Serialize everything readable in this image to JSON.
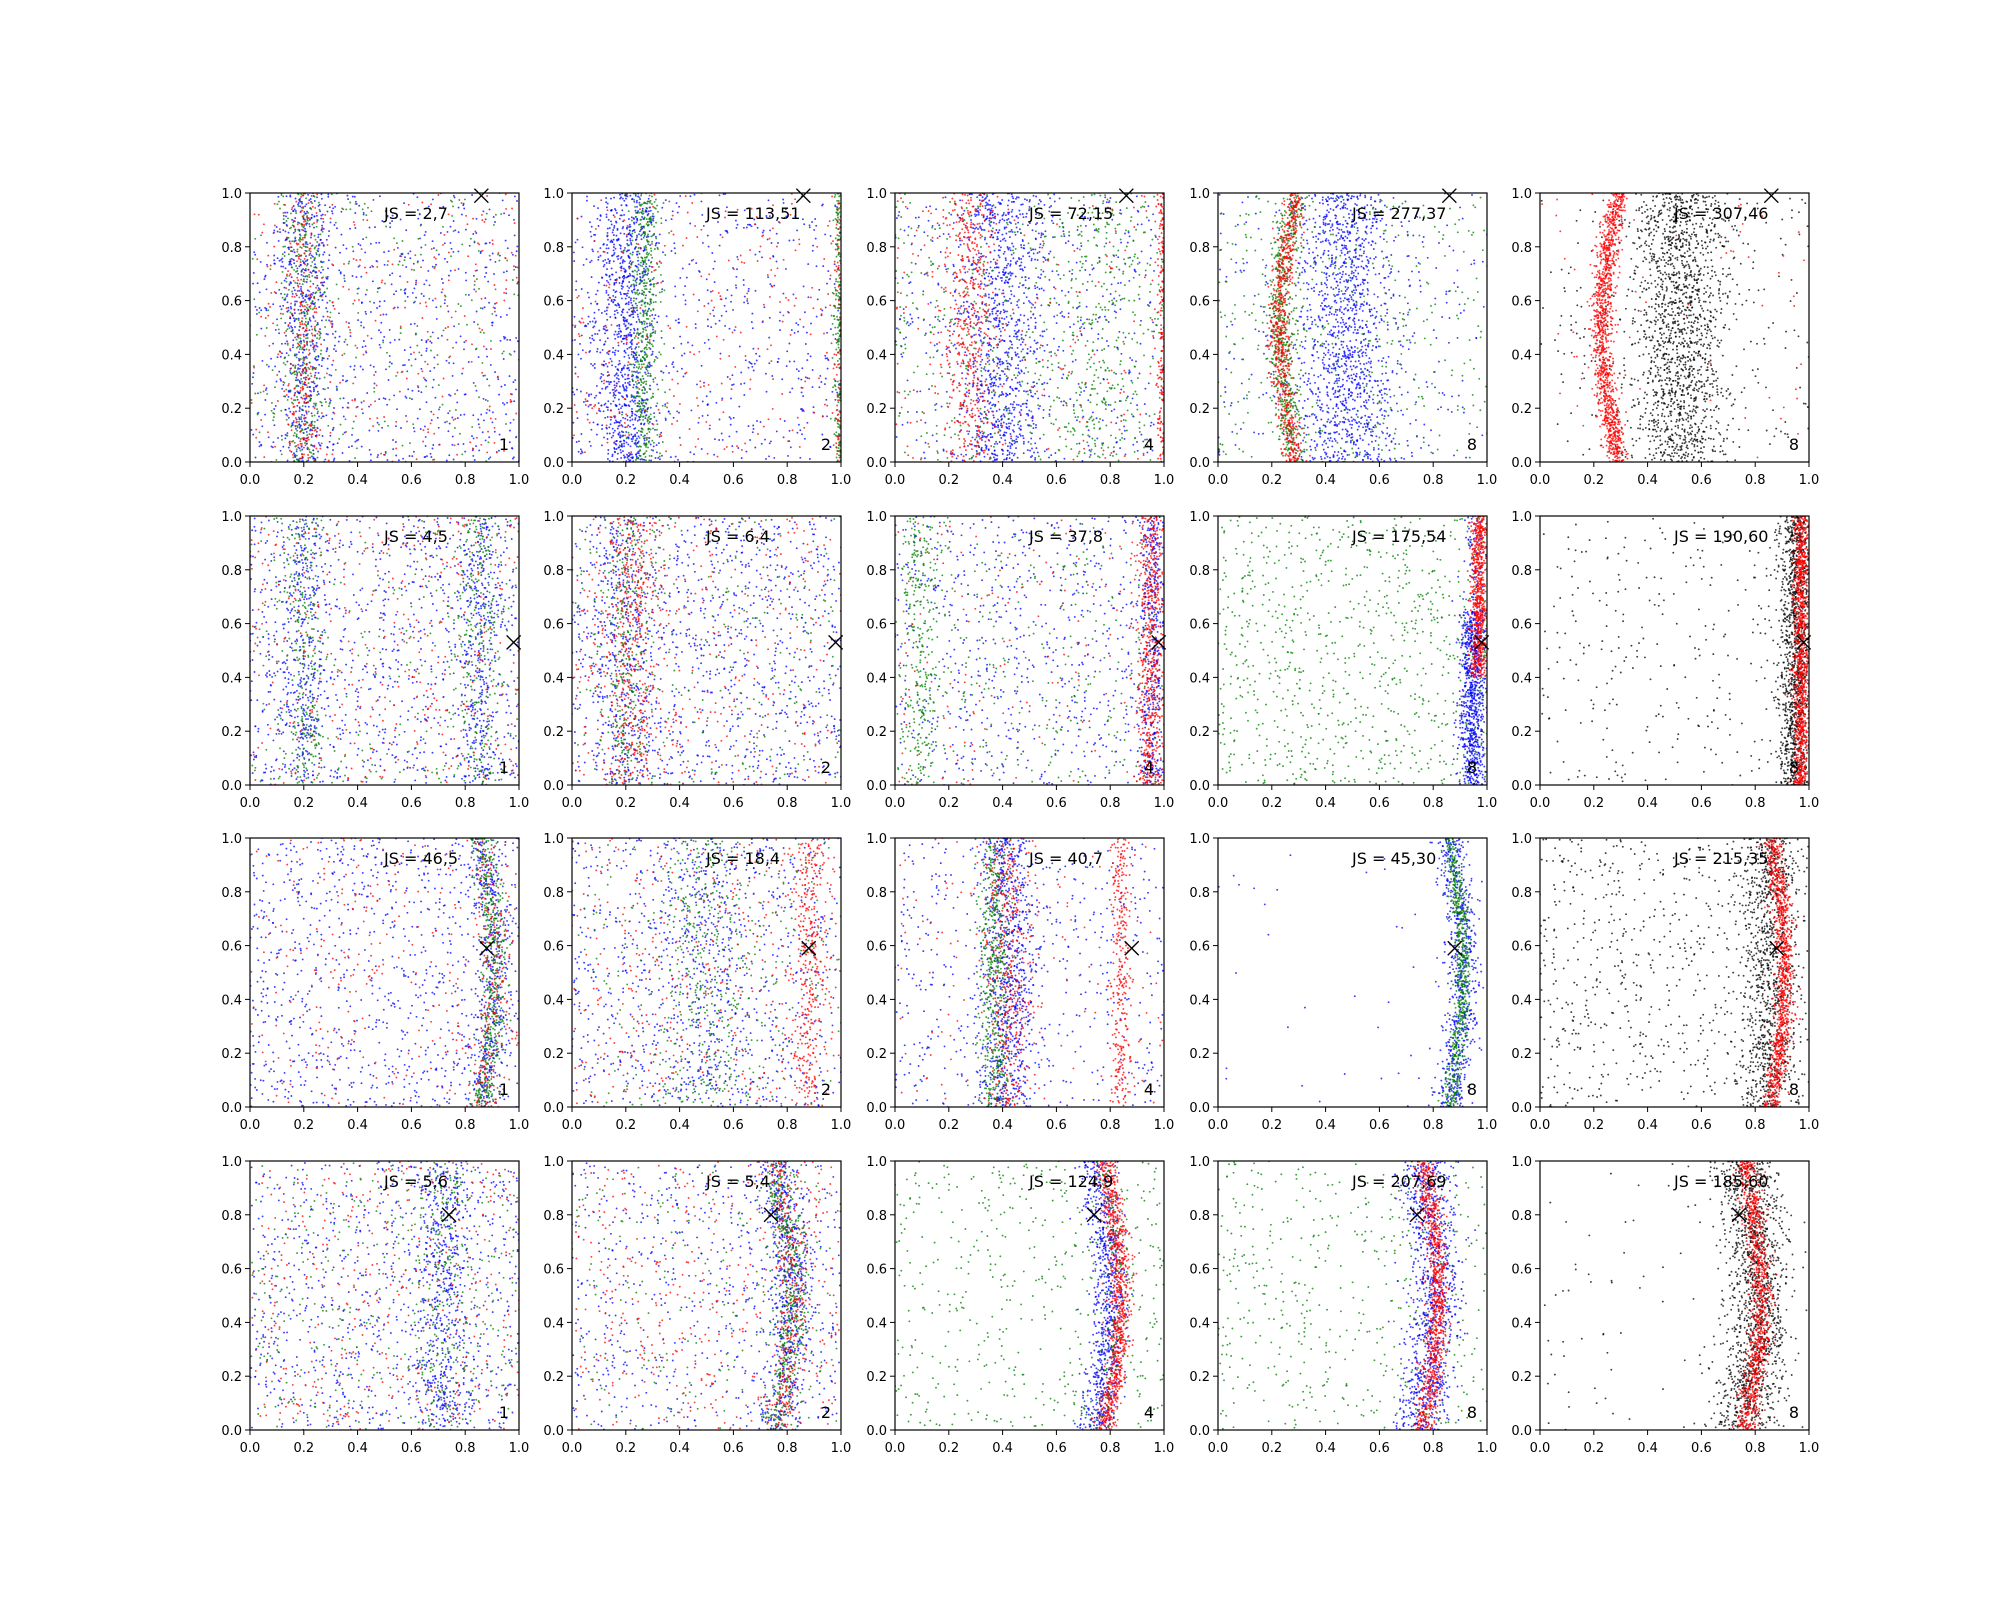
{
  "chart_data": {
    "type": "scatter",
    "grid": false,
    "legend": "none",
    "rows": 4,
    "cols": 5,
    "xlim": [
      0,
      1
    ],
    "ylim": [
      0,
      1
    ],
    "x_ticks": [
      "0.0",
      "0.2",
      "0.4",
      "0.6",
      "0.8",
      "1.0"
    ],
    "y_ticks": [
      "0.0",
      "0.2",
      "0.4",
      "0.6",
      "0.8",
      "1.0"
    ],
    "colors": {
      "blue": "#0000ff",
      "green": "#008000",
      "red": "#ff0000",
      "black": "#000000"
    },
    "panels": [
      {
        "js_label": "JS = 2,7",
        "corner_label": "1",
        "marker": [
          0.86,
          0.99
        ]
      },
      {
        "js_label": "JS = 113,51",
        "corner_label": "2",
        "marker": [
          0.86,
          0.99
        ]
      },
      {
        "js_label": "JS = 72,15",
        "corner_label": "4",
        "marker": [
          0.86,
          0.99
        ]
      },
      {
        "js_label": "JS = 277,37",
        "corner_label": "8",
        "marker": [
          0.86,
          0.99
        ]
      },
      {
        "js_label": "JS = 307,46",
        "corner_label": "8",
        "marker": [
          0.86,
          0.99
        ]
      },
      {
        "js_label": "JS = 4,5",
        "corner_label": "1",
        "marker": [
          0.98,
          0.53
        ]
      },
      {
        "js_label": "JS = 6,4",
        "corner_label": "2",
        "marker": [
          0.98,
          0.53
        ]
      },
      {
        "js_label": "JS = 37,8",
        "corner_label": "4",
        "marker": [
          0.98,
          0.53
        ]
      },
      {
        "js_label": "JS = 175,54",
        "corner_label": "8",
        "marker": [
          0.98,
          0.53
        ]
      },
      {
        "js_label": "JS = 190,60",
        "corner_label": "8",
        "marker": [
          0.98,
          0.53
        ]
      },
      {
        "js_label": "JS = 46,5",
        "corner_label": "1",
        "marker": [
          0.88,
          0.59
        ]
      },
      {
        "js_label": "JS = 18,4",
        "corner_label": "2",
        "marker": [
          0.88,
          0.59
        ]
      },
      {
        "js_label": "JS = 40,7",
        "corner_label": "4",
        "marker": [
          0.88,
          0.59
        ]
      },
      {
        "js_label": "JS = 45,30",
        "corner_label": "8",
        "marker": [
          0.88,
          0.59
        ]
      },
      {
        "js_label": "JS = 215,35",
        "corner_label": "8",
        "marker": [
          0.88,
          0.59
        ]
      },
      {
        "js_label": "JS = 5,6",
        "corner_label": "1",
        "marker": [
          0.74,
          0.8
        ]
      },
      {
        "js_label": "JS = 5,4",
        "corner_label": "2",
        "marker": [
          0.74,
          0.8
        ]
      },
      {
        "js_label": "JS = 124,9",
        "corner_label": "4",
        "marker": [
          0.74,
          0.8
        ]
      },
      {
        "js_label": "JS = 207,69",
        "corner_label": "8",
        "marker": [
          0.74,
          0.8
        ]
      },
      {
        "js_label": "JS = 185,60",
        "corner_label": "8",
        "marker": [
          0.74,
          0.8
        ]
      }
    ]
  }
}
